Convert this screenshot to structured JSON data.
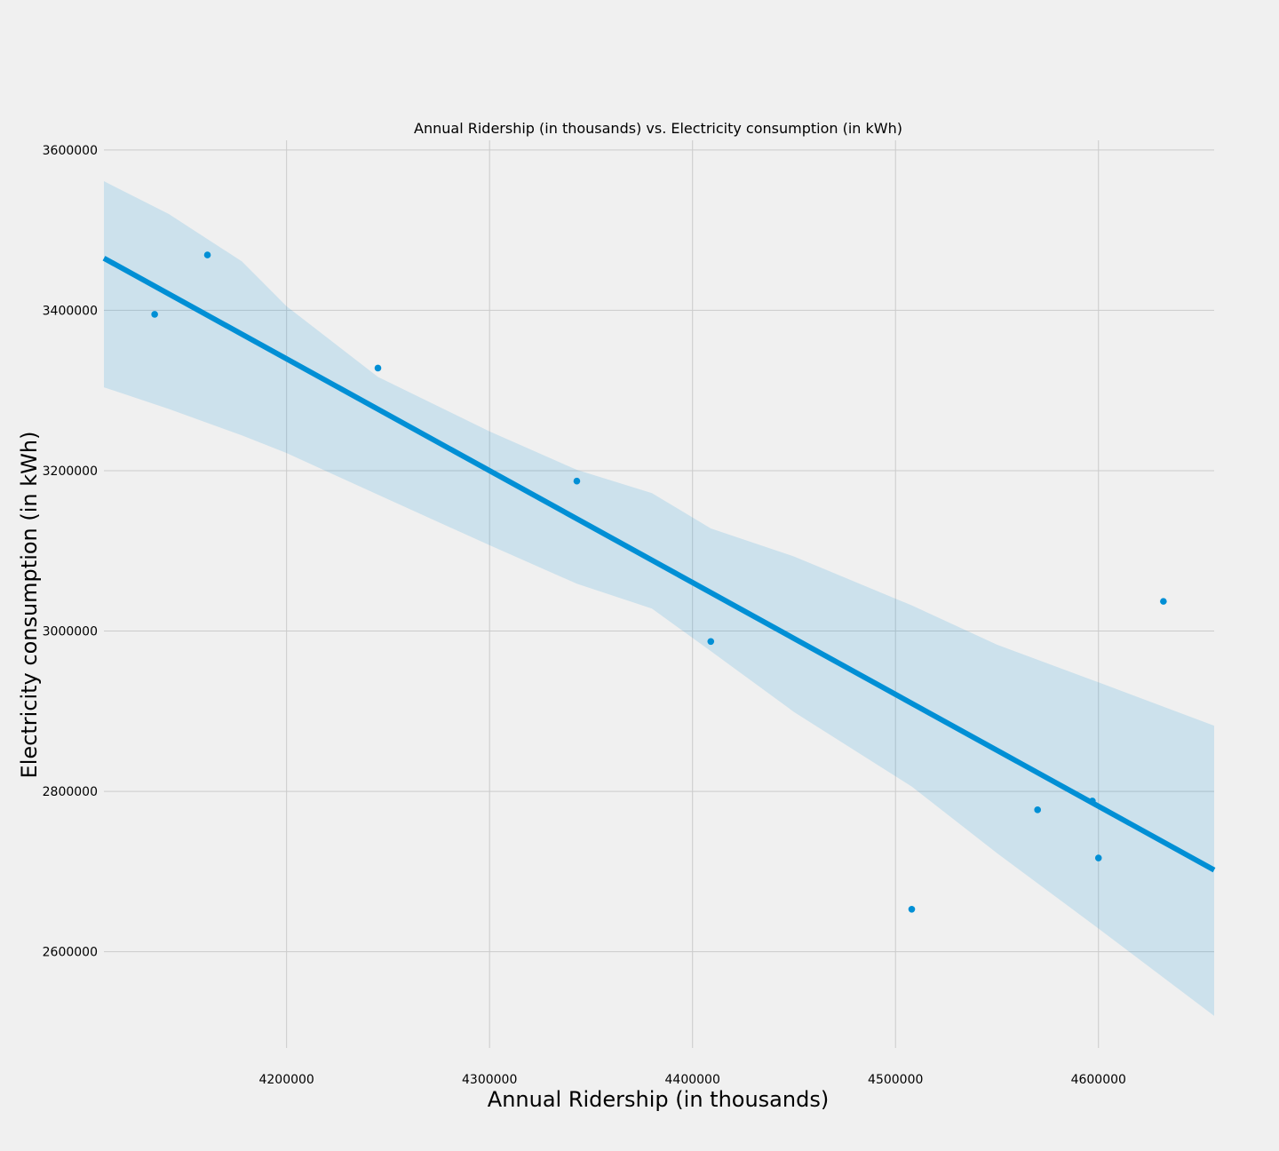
{
  "chart_data": {
    "type": "scatter",
    "title": "Annual Ridership (in thousands) vs. Electricity consumption (in kWh)",
    "xlabel": "Annual Ridership (in thousands)",
    "ylabel": "Electricity consumption (in kWh)",
    "xlim": [
      4110000,
      4657000
    ],
    "ylim": [
      2480000,
      3612000
    ],
    "x_ticks": [
      4200000,
      4300000,
      4400000,
      4500000,
      4600000
    ],
    "y_ticks": [
      2600000,
      2800000,
      3000000,
      3200000,
      3400000,
      3600000
    ],
    "grid": true,
    "colors": {
      "background": "#f0f0f0",
      "grid": "#cbcbcb",
      "points": "#008fd5",
      "fit_line": "#008fd5",
      "confidence_band": "#008fd5"
    },
    "points": [
      {
        "x": 4135000,
        "y": 3395000
      },
      {
        "x": 4161000,
        "y": 3469000
      },
      {
        "x": 4245000,
        "y": 3328000
      },
      {
        "x": 4343000,
        "y": 3187000
      },
      {
        "x": 4409000,
        "y": 2987000
      },
      {
        "x": 4508000,
        "y": 2653000
      },
      {
        "x": 4570000,
        "y": 2777000
      },
      {
        "x": 4597000,
        "y": 2788000
      },
      {
        "x": 4600000,
        "y": 2717000
      },
      {
        "x": 4632000,
        "y": 3037000
      }
    ],
    "regression_line": {
      "x": [
        4110000,
        4657000
      ],
      "y": [
        3465000,
        2702000
      ]
    },
    "confidence_band": {
      "x": [
        4110000,
        4142000,
        4178000,
        4200000,
        4245000,
        4300000,
        4343000,
        4380000,
        4409000,
        4450000,
        4508000,
        4550000,
        4600000,
        4657000
      ],
      "upper": [
        3561000,
        3520000,
        3461000,
        3405000,
        3317000,
        3249000,
        3201000,
        3172000,
        3128000,
        3093000,
        3032000,
        2983000,
        2936000,
        2882000
      ],
      "lower": [
        3304000,
        3277000,
        3244000,
        3222000,
        3170000,
        3107000,
        3059000,
        3028000,
        2975000,
        2899000,
        2806000,
        2723000,
        2629000,
        2520000
      ]
    }
  }
}
